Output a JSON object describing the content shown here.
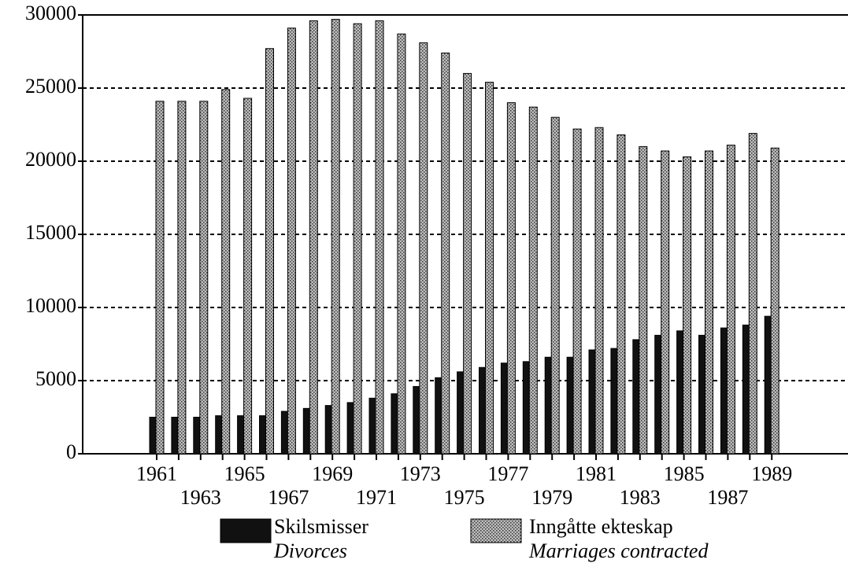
{
  "chart_data": {
    "type": "bar",
    "categories": [
      "1961",
      null,
      "1963",
      null,
      "1965",
      null,
      "1967",
      null,
      "1969",
      null,
      "1971",
      null,
      "1973",
      null,
      "1975",
      null,
      "1977",
      null,
      "1979",
      null,
      "1981",
      null,
      "1983",
      null,
      "1985",
      null,
      "1987",
      null,
      "1989"
    ],
    "series": [
      {
        "name": "Skilsmisser",
        "translation": "Divorces",
        "color": "#111111",
        "values": [
          2500,
          2500,
          2500,
          2600,
          2600,
          2600,
          2900,
          3100,
          3300,
          3500,
          3800,
          4100,
          4600,
          5200,
          5600,
          5900,
          6200,
          6300,
          6600,
          6600,
          7100,
          7200,
          7800,
          8100,
          8400,
          8100,
          8600,
          8800,
          9400
        ]
      },
      {
        "name": "Inngåtte ekteskap",
        "translation": "Marriages contracted",
        "color": "#bdbdbd",
        "values": [
          24100,
          24100,
          24100,
          24900,
          24300,
          27700,
          29100,
          29600,
          29700,
          29400,
          29600,
          28700,
          28100,
          27400,
          26000,
          25400,
          24000,
          23700,
          23000,
          22200,
          22300,
          21800,
          21000,
          20700,
          20300,
          20700,
          21100,
          21900,
          20900
        ]
      }
    ],
    "ylim": [
      0,
      30000
    ],
    "yticks": [
      0,
      5000,
      10000,
      15000,
      20000,
      25000,
      30000
    ],
    "grid": true
  }
}
